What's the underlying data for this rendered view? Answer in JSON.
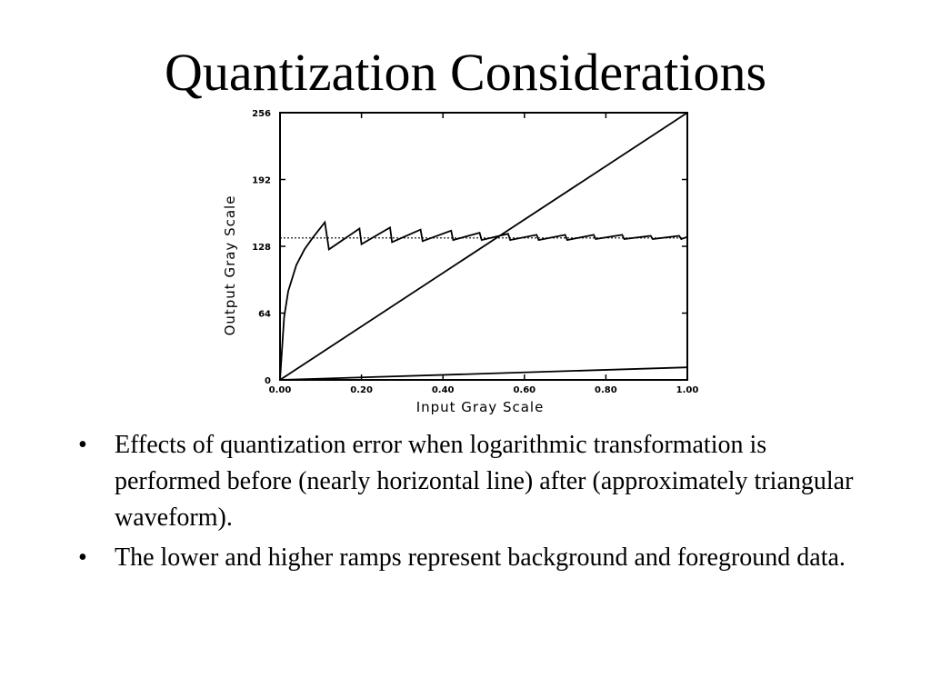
{
  "slide": {
    "title": "Quantization Considerations",
    "bullets": [
      "Effects of quantization error when logarithmic transformation is performed before (nearly horizontal line) after (approximately triangular waveform).",
      "The lower and higher ramps represent background and foreground data."
    ],
    "bullet_glyph": "•"
  },
  "chart_data": {
    "type": "line",
    "xlabel": "Input Gray Scale",
    "ylabel": "Output Gray Scale",
    "xlim": [
      0.0,
      1.0
    ],
    "ylim": [
      0,
      256
    ],
    "x_ticks": [
      "0.00",
      "0.20",
      "0.40",
      "0.60",
      "0.80",
      "1.00"
    ],
    "y_ticks": [
      "0",
      "64",
      "128",
      "192",
      "256"
    ],
    "grid": false,
    "series": [
      {
        "x": [
          0.0,
          1.0
        ],
        "y": [
          0,
          256
        ]
      },
      {
        "x": [
          0.0,
          1.0
        ],
        "y": [
          0,
          12
        ]
      },
      {
        "x": [
          0.0,
          1.0
        ],
        "y": [
          136,
          136
        ]
      },
      {
        "x": [
          0.0,
          0.01,
          0.02,
          0.04,
          0.06,
          0.08,
          0.1,
          0.11,
          0.12,
          0.195,
          0.2,
          0.27,
          0.275,
          0.345,
          0.35,
          0.42,
          0.425,
          0.49,
          0.495,
          0.56,
          0.565,
          0.63,
          0.635,
          0.7,
          0.705,
          0.77,
          0.775,
          0.84,
          0.845,
          0.91,
          0.915,
          0.98,
          0.985,
          1.0
        ],
        "y": [
          0,
          60,
          85,
          110,
          125,
          136,
          146,
          151,
          125,
          145,
          130,
          146,
          132,
          144,
          133,
          143,
          134,
          141,
          134,
          140,
          134,
          139,
          134,
          139,
          134,
          139,
          135,
          139,
          135,
          138,
          135,
          138,
          135,
          137
        ]
      }
    ]
  }
}
